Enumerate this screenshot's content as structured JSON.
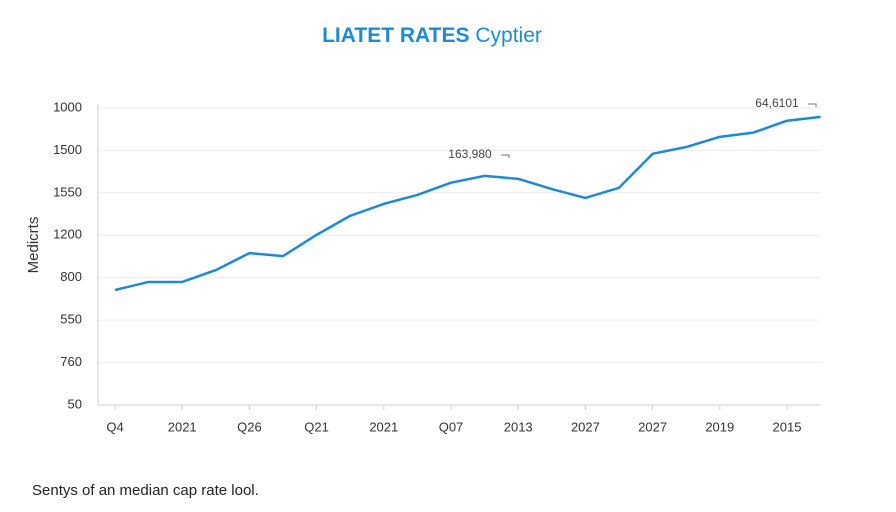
{
  "chart_data": {
    "type": "line",
    "title": "LIATET RATES",
    "title_suffix": "Cyptier",
    "y_label": "Medicrts",
    "footer": "Sentys of an median cap rate lool.",
    "annotations": [
      "163,980",
      "64,6101"
    ],
    "categories": [
      "Q4",
      null,
      "2021",
      null,
      "Q26",
      null,
      "Q21",
      null,
      "2021",
      null,
      "Q07",
      null,
      "2013",
      null,
      "2027",
      null,
      "2027",
      null,
      "2019",
      null,
      "2015",
      null
    ],
    "series": [
      {
        "name": "Medicrts",
        "color": "#1f8ad4",
        "values": [
          2.71,
          2.9,
          2.9,
          3.18,
          3.58,
          3.51,
          4.01,
          4.46,
          4.74,
          4.95,
          5.24,
          5.4,
          5.33,
          5.09,
          4.88,
          5.12,
          5.92,
          6.08,
          6.32,
          6.42,
          6.7,
          6.79
        ]
      }
    ],
    "ylim": [
      0,
      7
    ],
    "yticks": [
      {
        "value": 0,
        "label": "50"
      },
      {
        "value": 1,
        "label": "760"
      },
      {
        "value": 2,
        "label": "550"
      },
      {
        "value": 3,
        "label": "800"
      },
      {
        "value": 4,
        "label": "1200"
      },
      {
        "value": 5,
        "label": "1550"
      },
      {
        "value": 6,
        "label": "1500"
      },
      {
        "value": 7,
        "label": "1000"
      }
    ],
    "grid": true
  }
}
